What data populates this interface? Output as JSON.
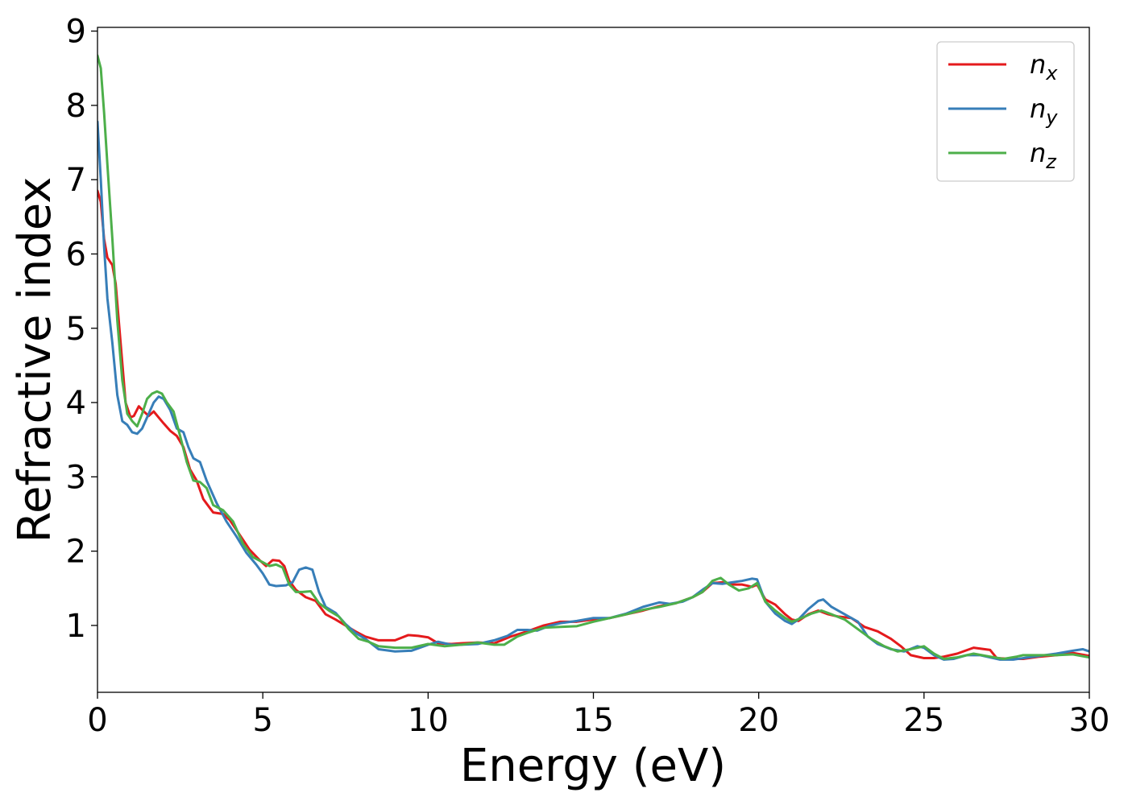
{
  "chart_data": {
    "type": "line",
    "title": "",
    "xlabel": "Energy (eV)",
    "ylabel": "Refractive index",
    "xlim": [
      0,
      30
    ],
    "ylim": [
      0.1,
      9.05
    ],
    "xticks": [
      0,
      5,
      10,
      15,
      20,
      25,
      30
    ],
    "yticks": [
      1,
      2,
      3,
      4,
      5,
      6,
      7,
      8,
      9
    ],
    "grid": false,
    "legend_position": "top-right",
    "series": [
      {
        "name": "n_x",
        "label_base": "n",
        "label_sub": "x",
        "color": "#e41a1c",
        "points": [
          [
            0,
            6.85
          ],
          [
            0.1,
            6.7
          ],
          [
            0.2,
            6.2
          ],
          [
            0.3,
            5.95
          ],
          [
            0.45,
            5.85
          ],
          [
            0.55,
            5.6
          ],
          [
            0.7,
            4.8
          ],
          [
            0.85,
            4.0
          ],
          [
            1.0,
            3.8
          ],
          [
            1.1,
            3.82
          ],
          [
            1.25,
            3.95
          ],
          [
            1.4,
            3.88
          ],
          [
            1.55,
            3.82
          ],
          [
            1.7,
            3.88
          ],
          [
            1.85,
            3.8
          ],
          [
            2.0,
            3.72
          ],
          [
            2.2,
            3.62
          ],
          [
            2.4,
            3.55
          ],
          [
            2.6,
            3.4
          ],
          [
            2.8,
            3.1
          ],
          [
            3.0,
            2.95
          ],
          [
            3.2,
            2.7
          ],
          [
            3.5,
            2.52
          ],
          [
            3.8,
            2.5
          ],
          [
            4.0,
            2.42
          ],
          [
            4.3,
            2.22
          ],
          [
            4.6,
            2.02
          ],
          [
            4.9,
            1.88
          ],
          [
            5.1,
            1.8
          ],
          [
            5.3,
            1.88
          ],
          [
            5.5,
            1.87
          ],
          [
            5.65,
            1.8
          ],
          [
            5.8,
            1.6
          ],
          [
            6.0,
            1.48
          ],
          [
            6.3,
            1.38
          ],
          [
            6.6,
            1.33
          ],
          [
            6.9,
            1.15
          ],
          [
            7.2,
            1.08
          ],
          [
            7.5,
            1.0
          ],
          [
            7.8,
            0.92
          ],
          [
            8.1,
            0.85
          ],
          [
            8.5,
            0.8
          ],
          [
            9.0,
            0.8
          ],
          [
            9.4,
            0.87
          ],
          [
            9.7,
            0.86
          ],
          [
            10.0,
            0.84
          ],
          [
            10.3,
            0.76
          ],
          [
            10.7,
            0.75
          ],
          [
            11.0,
            0.76
          ],
          [
            11.5,
            0.77
          ],
          [
            12.0,
            0.76
          ],
          [
            12.5,
            0.85
          ],
          [
            13.0,
            0.92
          ],
          [
            13.5,
            1.0
          ],
          [
            14.0,
            1.05
          ],
          [
            14.5,
            1.05
          ],
          [
            15.0,
            1.08
          ],
          [
            15.5,
            1.1
          ],
          [
            16.0,
            1.15
          ],
          [
            16.5,
            1.2
          ],
          [
            17.0,
            1.26
          ],
          [
            17.5,
            1.3
          ],
          [
            18.0,
            1.38
          ],
          [
            18.3,
            1.45
          ],
          [
            18.6,
            1.57
          ],
          [
            18.9,
            1.58
          ],
          [
            19.2,
            1.55
          ],
          [
            19.5,
            1.55
          ],
          [
            19.8,
            1.52
          ],
          [
            19.95,
            1.55
          ],
          [
            20.2,
            1.35
          ],
          [
            20.5,
            1.28
          ],
          [
            20.8,
            1.15
          ],
          [
            21.0,
            1.08
          ],
          [
            21.2,
            1.06
          ],
          [
            21.5,
            1.15
          ],
          [
            21.8,
            1.2
          ],
          [
            22.1,
            1.15
          ],
          [
            22.4,
            1.12
          ],
          [
            22.8,
            1.1
          ],
          [
            23.2,
            0.98
          ],
          [
            23.6,
            0.92
          ],
          [
            24.0,
            0.82
          ],
          [
            24.3,
            0.72
          ],
          [
            24.6,
            0.6
          ],
          [
            25.0,
            0.56
          ],
          [
            25.3,
            0.56
          ],
          [
            25.6,
            0.58
          ],
          [
            26.0,
            0.62
          ],
          [
            26.5,
            0.7
          ],
          [
            27.0,
            0.67
          ],
          [
            27.2,
            0.56
          ],
          [
            27.6,
            0.55
          ],
          [
            28.0,
            0.55
          ],
          [
            28.5,
            0.58
          ],
          [
            29.0,
            0.6
          ],
          [
            29.5,
            0.63
          ],
          [
            30.0,
            0.59
          ]
        ]
      },
      {
        "name": "n_y",
        "label_base": "n",
        "label_sub": "y",
        "color": "#377eb8",
        "points": [
          [
            0,
            7.78
          ],
          [
            0.1,
            7.0
          ],
          [
            0.2,
            6.1
          ],
          [
            0.3,
            5.4
          ],
          [
            0.45,
            4.8
          ],
          [
            0.6,
            4.1
          ],
          [
            0.75,
            3.75
          ],
          [
            0.9,
            3.7
          ],
          [
            1.05,
            3.6
          ],
          [
            1.2,
            3.58
          ],
          [
            1.35,
            3.65
          ],
          [
            1.5,
            3.8
          ],
          [
            1.7,
            4.0
          ],
          [
            1.85,
            4.08
          ],
          [
            2.0,
            4.05
          ],
          [
            2.2,
            3.9
          ],
          [
            2.4,
            3.65
          ],
          [
            2.6,
            3.6
          ],
          [
            2.75,
            3.4
          ],
          [
            2.9,
            3.25
          ],
          [
            3.1,
            3.2
          ],
          [
            3.3,
            2.95
          ],
          [
            3.6,
            2.65
          ],
          [
            3.9,
            2.4
          ],
          [
            4.2,
            2.2
          ],
          [
            4.5,
            1.98
          ],
          [
            4.8,
            1.82
          ],
          [
            5.0,
            1.7
          ],
          [
            5.2,
            1.55
          ],
          [
            5.4,
            1.53
          ],
          [
            5.7,
            1.54
          ],
          [
            5.9,
            1.58
          ],
          [
            6.1,
            1.75
          ],
          [
            6.3,
            1.78
          ],
          [
            6.5,
            1.75
          ],
          [
            6.7,
            1.45
          ],
          [
            6.9,
            1.25
          ],
          [
            7.2,
            1.17
          ],
          [
            7.5,
            1.02
          ],
          [
            7.8,
            0.9
          ],
          [
            8.1,
            0.82
          ],
          [
            8.5,
            0.68
          ],
          [
            9.0,
            0.65
          ],
          [
            9.5,
            0.66
          ],
          [
            10.0,
            0.74
          ],
          [
            10.3,
            0.78
          ],
          [
            10.7,
            0.74
          ],
          [
            11.0,
            0.74
          ],
          [
            11.5,
            0.75
          ],
          [
            12.0,
            0.8
          ],
          [
            12.4,
            0.86
          ],
          [
            12.7,
            0.94
          ],
          [
            13.0,
            0.94
          ],
          [
            13.3,
            0.93
          ],
          [
            13.7,
            1.0
          ],
          [
            14.0,
            1.03
          ],
          [
            14.5,
            1.06
          ],
          [
            15.0,
            1.1
          ],
          [
            15.5,
            1.1
          ],
          [
            16.0,
            1.16
          ],
          [
            16.5,
            1.25
          ],
          [
            17.0,
            1.31
          ],
          [
            17.3,
            1.29
          ],
          [
            17.7,
            1.32
          ],
          [
            18.0,
            1.38
          ],
          [
            18.3,
            1.48
          ],
          [
            18.6,
            1.57
          ],
          [
            18.9,
            1.56
          ],
          [
            19.2,
            1.58
          ],
          [
            19.5,
            1.6
          ],
          [
            19.8,
            1.63
          ],
          [
            19.95,
            1.62
          ],
          [
            20.2,
            1.32
          ],
          [
            20.5,
            1.16
          ],
          [
            20.8,
            1.06
          ],
          [
            21.0,
            1.02
          ],
          [
            21.2,
            1.08
          ],
          [
            21.5,
            1.22
          ],
          [
            21.8,
            1.33
          ],
          [
            21.95,
            1.35
          ],
          [
            22.2,
            1.25
          ],
          [
            22.6,
            1.15
          ],
          [
            23.0,
            1.05
          ],
          [
            23.3,
            0.85
          ],
          [
            23.6,
            0.75
          ],
          [
            24.0,
            0.68
          ],
          [
            24.4,
            0.65
          ],
          [
            24.8,
            0.72
          ],
          [
            25.0,
            0.7
          ],
          [
            25.3,
            0.6
          ],
          [
            25.6,
            0.54
          ],
          [
            25.9,
            0.55
          ],
          [
            26.3,
            0.6
          ],
          [
            26.7,
            0.6
          ],
          [
            27.0,
            0.57
          ],
          [
            27.3,
            0.54
          ],
          [
            27.7,
            0.54
          ],
          [
            28.0,
            0.56
          ],
          [
            28.5,
            0.59
          ],
          [
            29.0,
            0.62
          ],
          [
            29.5,
            0.66
          ],
          [
            29.8,
            0.68
          ],
          [
            30.0,
            0.65
          ]
        ]
      },
      {
        "name": "n_z",
        "label_base": "n",
        "label_sub": "z",
        "color": "#4daf4a",
        "points": [
          [
            0,
            8.67
          ],
          [
            0.1,
            8.5
          ],
          [
            0.2,
            7.9
          ],
          [
            0.3,
            7.2
          ],
          [
            0.45,
            6.2
          ],
          [
            0.6,
            5.1
          ],
          [
            0.75,
            4.3
          ],
          [
            0.9,
            3.85
          ],
          [
            1.05,
            3.75
          ],
          [
            1.2,
            3.68
          ],
          [
            1.35,
            3.85
          ],
          [
            1.5,
            4.05
          ],
          [
            1.65,
            4.12
          ],
          [
            1.8,
            4.15
          ],
          [
            1.95,
            4.12
          ],
          [
            2.1,
            4.0
          ],
          [
            2.3,
            3.88
          ],
          [
            2.5,
            3.55
          ],
          [
            2.7,
            3.2
          ],
          [
            2.9,
            2.95
          ],
          [
            3.1,
            2.93
          ],
          [
            3.3,
            2.85
          ],
          [
            3.5,
            2.62
          ],
          [
            3.8,
            2.55
          ],
          [
            4.1,
            2.4
          ],
          [
            4.4,
            2.1
          ],
          [
            4.7,
            1.92
          ],
          [
            5.0,
            1.85
          ],
          [
            5.2,
            1.8
          ],
          [
            5.4,
            1.82
          ],
          [
            5.6,
            1.78
          ],
          [
            5.8,
            1.55
          ],
          [
            6.0,
            1.45
          ],
          [
            6.2,
            1.45
          ],
          [
            6.45,
            1.46
          ],
          [
            6.7,
            1.3
          ],
          [
            7.0,
            1.2
          ],
          [
            7.3,
            1.12
          ],
          [
            7.6,
            0.95
          ],
          [
            7.9,
            0.82
          ],
          [
            8.2,
            0.78
          ],
          [
            8.5,
            0.72
          ],
          [
            9.0,
            0.7
          ],
          [
            9.5,
            0.7
          ],
          [
            10.0,
            0.75
          ],
          [
            10.5,
            0.72
          ],
          [
            11.0,
            0.74
          ],
          [
            11.5,
            0.77
          ],
          [
            12.0,
            0.74
          ],
          [
            12.3,
            0.74
          ],
          [
            12.7,
            0.85
          ],
          [
            13.0,
            0.9
          ],
          [
            13.5,
            0.97
          ],
          [
            14.0,
            0.98
          ],
          [
            14.5,
            0.99
          ],
          [
            15.0,
            1.05
          ],
          [
            15.5,
            1.1
          ],
          [
            16.0,
            1.15
          ],
          [
            16.5,
            1.21
          ],
          [
            17.0,
            1.25
          ],
          [
            17.5,
            1.3
          ],
          [
            18.0,
            1.38
          ],
          [
            18.3,
            1.45
          ],
          [
            18.6,
            1.6
          ],
          [
            18.85,
            1.64
          ],
          [
            19.1,
            1.55
          ],
          [
            19.4,
            1.47
          ],
          [
            19.7,
            1.5
          ],
          [
            19.95,
            1.57
          ],
          [
            20.2,
            1.32
          ],
          [
            20.5,
            1.2
          ],
          [
            20.8,
            1.1
          ],
          [
            21.0,
            1.05
          ],
          [
            21.3,
            1.1
          ],
          [
            21.6,
            1.16
          ],
          [
            21.9,
            1.2
          ],
          [
            22.2,
            1.15
          ],
          [
            22.6,
            1.08
          ],
          [
            23.0,
            0.95
          ],
          [
            23.4,
            0.82
          ],
          [
            23.8,
            0.72
          ],
          [
            24.2,
            0.65
          ],
          [
            24.6,
            0.68
          ],
          [
            25.0,
            0.72
          ],
          [
            25.3,
            0.62
          ],
          [
            25.6,
            0.55
          ],
          [
            26.0,
            0.57
          ],
          [
            26.5,
            0.62
          ],
          [
            27.0,
            0.58
          ],
          [
            27.4,
            0.55
          ],
          [
            27.8,
            0.58
          ],
          [
            28.0,
            0.6
          ],
          [
            28.5,
            0.6
          ],
          [
            29.0,
            0.6
          ],
          [
            29.5,
            0.61
          ],
          [
            30.0,
            0.57
          ]
        ]
      }
    ]
  }
}
